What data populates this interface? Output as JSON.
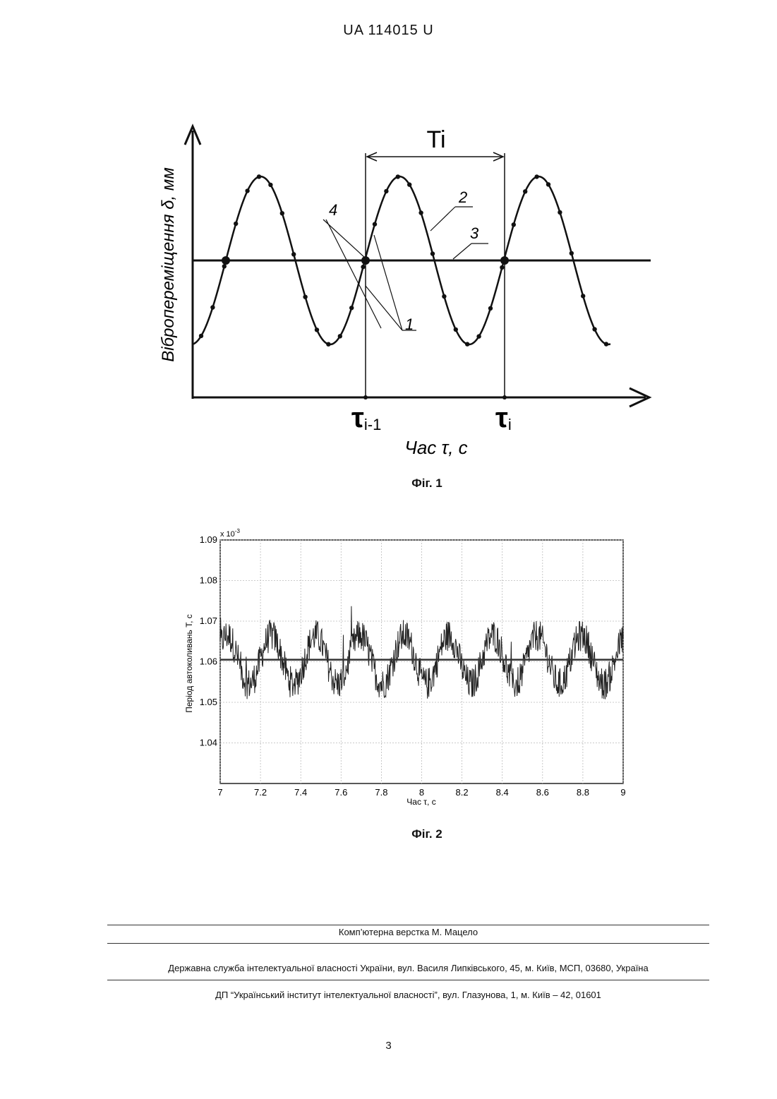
{
  "header": {
    "doc_id": "UA   114015   U"
  },
  "figure1": {
    "caption": "Фіг. 1",
    "y_label": "Вібропереміщення δ, мм",
    "x_label": "Час τ, с",
    "period_label": "Ti",
    "tau_prev": "τ",
    "tau_prev_sub": "i-1",
    "tau_cur": "τ",
    "tau_cur_sub": "i",
    "callouts": [
      "1",
      "2",
      "3",
      "4"
    ]
  },
  "figure2": {
    "caption": "Фіг. 2",
    "chart_data": {
      "type": "line",
      "xlabel": "Час τ, с",
      "ylabel": "Період автоколивань T, с",
      "y_multiplier": "x 10",
      "y_multiplier_exp": "-3",
      "xlim": [
        7,
        9
      ],
      "ylim": [
        1.03,
        1.09
      ],
      "x_ticks": [
        "7",
        "7.2",
        "7.4",
        "7.6",
        "7.8",
        "8",
        "8.2",
        "8.4",
        "8.6",
        "8.8",
        "9"
      ],
      "y_ticks": [
        "1.09",
        "1.08",
        "1.07",
        "1.06",
        "1.05",
        "1.04"
      ],
      "grid": true,
      "mean_line": 1.0605,
      "signal": {
        "baseline": 1.0605,
        "oscillation_amplitude": 0.006,
        "oscillation_period": 0.22,
        "noise": 0.004
      }
    }
  },
  "footer": {
    "layout_credit": "Комп’ютерна верстка М. Мацело",
    "agency": "Державна служба інтелектуальної власності України, вул. Василя Липківського, 45, м. Київ, МСП, 03680, Україна",
    "institute": "ДП “Український інститут інтелектуальної власності”, вул. Глазунова, 1, м. Київ – 42, 01601",
    "page_number": "3"
  }
}
